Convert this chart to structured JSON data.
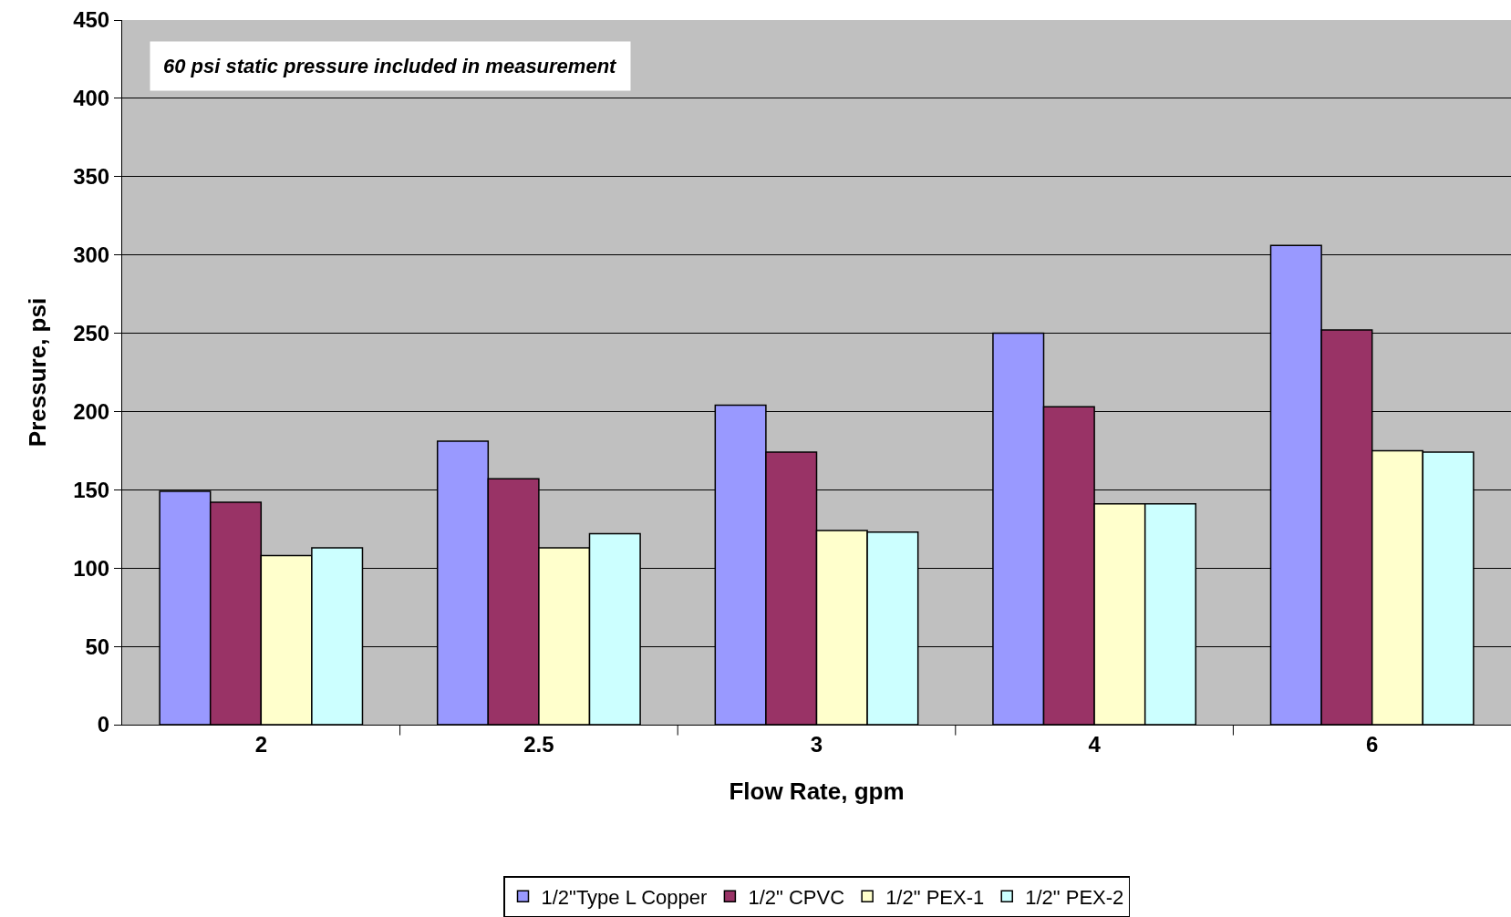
{
  "chart_data": {
    "type": "bar",
    "xlabel": "Flow Rate, gpm",
    "ylabel": "Pressure, psi",
    "categories": [
      "2",
      "2.5",
      "3",
      "4",
      "6"
    ],
    "series": [
      {
        "name": "1/2\"Type L Copper",
        "color": "#9999ff",
        "values": [
          149,
          181,
          204,
          250,
          306
        ]
      },
      {
        "name": "1/2\" CPVC",
        "color": "#993366",
        "values": [
          142,
          157,
          174,
          203,
          252
        ]
      },
      {
        "name": "1/2\" PEX-1",
        "color": "#ffffcc",
        "values": [
          108,
          113,
          124,
          141,
          175
        ]
      },
      {
        "name": "1/2\" PEX-2",
        "color": "#ccffff",
        "values": [
          113,
          122,
          123,
          141,
          174
        ]
      }
    ],
    "ylim": [
      0,
      450
    ],
    "yticks": [
      0,
      50,
      100,
      150,
      200,
      250,
      300,
      350,
      400,
      450
    ],
    "grid": "y",
    "legend": "bottom",
    "annotations": [
      "60 psi static pressure included in measurement"
    ]
  }
}
